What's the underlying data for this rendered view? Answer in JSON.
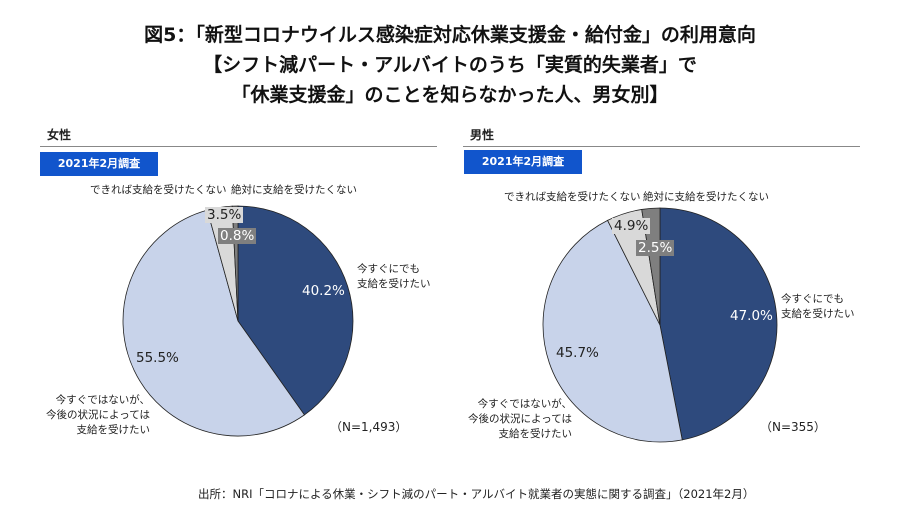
{
  "title_lines": [
    "図5：「新型コロナウイルス感染症対応休業支援金・給付金」の利用意向",
    "【シフト減パート・アルバイトのうち「実質的失業者」で",
    "「休業支援金」のことを知らなかった人、男女別】"
  ],
  "source": "出所：NRI「コロナによる休業・シフト減のパート・アルバイト就業者の実態に関する調査」（2021年2月）",
  "colors": [
    "#2e4a7d",
    "#c8d3ea",
    "#d9d9d9",
    "#7f7f7f"
  ],
  "chart_data": [
    {
      "type": "pie",
      "title": "女性",
      "badge": "2021年2月調査",
      "n_label": "（N=1,493）",
      "categories": [
        "今すぐにでも支給を受けたい",
        "今すぐではないが、今後の状況によっては支給を受けたい",
        "できれば支給を受けたくない",
        "絶対に支給を受けたくない"
      ],
      "values": [
        40.2,
        55.5,
        3.5,
        0.8
      ],
      "value_labels": [
        "40.2%",
        "55.5%",
        "3.5%",
        "0.8%"
      ]
    },
    {
      "type": "pie",
      "title": "男性",
      "badge": "2021年2月調査",
      "n_label": "（N=355）",
      "categories": [
        "今すぐにでも支給を受けたい",
        "今すぐではないが、今後の状況によっては支給を受けたい",
        "できれば支給を受けたくない",
        "絶対に支給を受けたくない"
      ],
      "values": [
        47.0,
        45.7,
        4.9,
        2.5
      ],
      "value_labels": [
        "47.0%",
        "45.7%",
        "4.9%",
        "2.5%"
      ]
    }
  ],
  "cat_lines": {
    "a": [
      "今すぐにでも",
      "支給を受けたい"
    ],
    "b": [
      "今すぐではないが、",
      "今後の状況によっては",
      "支給を受けたい"
    ],
    "c": "できれば支給を受けたくない",
    "d": "絶対に支給を受けたくない"
  }
}
